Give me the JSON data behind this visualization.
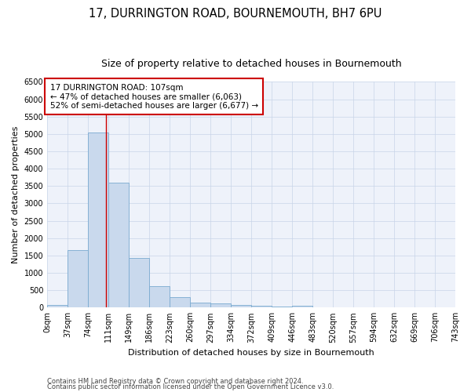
{
  "title": "17, DURRINGTON ROAD, BOURNEMOUTH, BH7 6PU",
  "subtitle": "Size of property relative to detached houses in Bournemouth",
  "xlabel": "Distribution of detached houses by size in Bournemouth",
  "ylabel": "Number of detached properties",
  "footer1": "Contains HM Land Registry data © Crown copyright and database right 2024.",
  "footer2": "Contains public sector information licensed under the Open Government Licence v3.0.",
  "bar_edges": [
    0,
    37,
    74,
    111,
    149,
    186,
    223,
    260,
    297,
    334,
    372,
    409,
    446,
    483,
    520,
    557,
    594,
    632,
    669,
    706,
    743
  ],
  "bar_heights": [
    80,
    1650,
    5050,
    3600,
    1420,
    620,
    300,
    150,
    110,
    80,
    50,
    40,
    60,
    0,
    0,
    0,
    0,
    0,
    0,
    0
  ],
  "bar_color": "#c9d9ed",
  "bar_edge_color": "#7aaad0",
  "grid_color": "#c8d4e8",
  "property_size": 107,
  "vline_color": "#cc0000",
  "annotation_line1": "17 DURRINGTON ROAD: 107sqm",
  "annotation_line2": "← 47% of detached houses are smaller (6,063)",
  "annotation_line3": "52% of semi-detached houses are larger (6,677) →",
  "annotation_box_color": "#ffffff",
  "annotation_box_edge": "#cc0000",
  "ylim": [
    0,
    6500
  ],
  "yticks": [
    0,
    500,
    1000,
    1500,
    2000,
    2500,
    3000,
    3500,
    4000,
    4500,
    5000,
    5500,
    6000,
    6500
  ],
  "bg_color": "#eef2fa",
  "title_fontsize": 10.5,
  "subtitle_fontsize": 9,
  "axis_fontsize": 8,
  "tick_fontsize": 7,
  "footer_fontsize": 6
}
